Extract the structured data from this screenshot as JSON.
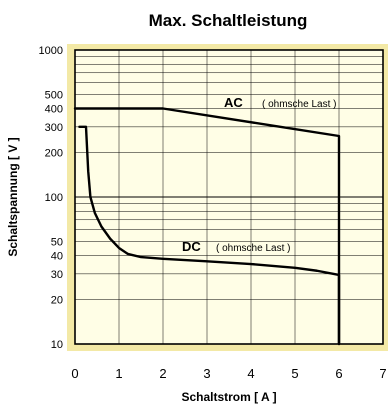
{
  "chart_data": {
    "type": "line",
    "title": "Max. Schaltleistung",
    "xlabel": "Schaltstrom [ A ]",
    "ylabel": "Schaltspannung [ V ]",
    "xlim": [
      0,
      7
    ],
    "ylim": [
      10,
      1000
    ],
    "y_scale": "log",
    "x_ticks": [
      "0",
      "1",
      "2",
      "3",
      "4",
      "5",
      "6",
      "7"
    ],
    "y_ticks": [
      {
        "value": 1000,
        "label": "1000"
      },
      {
        "value": 500,
        "label": "500"
      },
      {
        "value": 400,
        "label": "400"
      },
      {
        "value": 300,
        "label": "300"
      },
      {
        "value": 200,
        "label": "200"
      },
      {
        "value": 100,
        "label": "100"
      },
      {
        "value": 50,
        "label": "50"
      },
      {
        "value": 40,
        "label": "40"
      },
      {
        "value": 30,
        "label": "30"
      },
      {
        "value": 20,
        "label": "20"
      },
      {
        "value": 10,
        "label": "10"
      }
    ],
    "grid": true,
    "series": [
      {
        "name": "AC",
        "note": "( ohmsche Last )",
        "color": "#000000",
        "x": [
          0,
          2,
          6,
          6
        ],
        "y": [
          400,
          400,
          260,
          10
        ]
      },
      {
        "name": "DC",
        "note": "( ohmsche Last )",
        "color": "#000000",
        "x": [
          0.1,
          0.25,
          0.3,
          0.35,
          0.45,
          0.6,
          0.8,
          1.0,
          1.2,
          1.5,
          2.0,
          3.0,
          4.0,
          5.0,
          5.5,
          6.0,
          6.0
        ],
        "y": [
          300,
          300,
          150,
          100,
          78,
          63,
          52,
          45,
          41,
          39,
          38,
          36.5,
          35,
          33,
          31.5,
          29.5,
          10
        ]
      }
    ],
    "colors": {
      "plot_background": "#fffee6",
      "frame": "#f3e9a6",
      "grid": "#000000"
    }
  }
}
